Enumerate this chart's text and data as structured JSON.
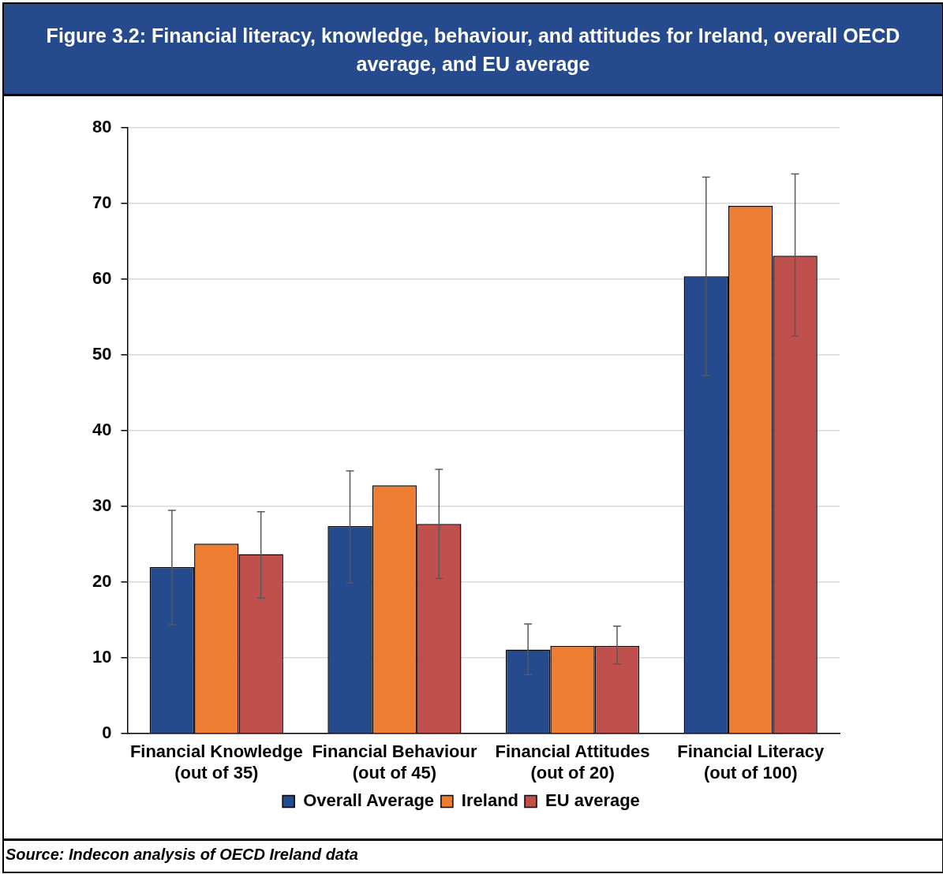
{
  "chart_data": {
    "type": "bar",
    "title": "Figure 3.2: Financial literacy, knowledge, behaviour, and attitudes for Ireland, overall OECD average, and EU average",
    "categories": [
      "Financial Knowledge (out of 35)",
      "Financial Behaviour (out of 45)",
      "Financial Attitudes (out of 20)",
      "Financial Literacy (out of 100)"
    ],
    "series": [
      {
        "name": "Overall Average",
        "color": "#264a8e",
        "values": [
          22.0,
          27.4,
          11.1,
          60.4
        ],
        "errors": [
          [
            14.4,
            29.5
          ],
          [
            19.9,
            34.7
          ],
          [
            7.8,
            14.5
          ],
          [
            47.3,
            73.5
          ]
        ]
      },
      {
        "name": "Ireland",
        "color": "#ed7d31",
        "values": [
          25.1,
          32.8,
          11.6,
          69.7
        ]
      },
      {
        "name": "EU average",
        "color": "#c0504d",
        "values": [
          23.7,
          27.7,
          11.6,
          63.1
        ],
        "errors": [
          [
            17.9,
            29.3
          ],
          [
            20.5,
            34.9
          ],
          [
            9.2,
            14.2
          ],
          [
            52.5,
            73.9
          ]
        ]
      }
    ],
    "ylim": [
      0,
      80
    ],
    "yticks": [
      0,
      10,
      20,
      30,
      40,
      50,
      60,
      70,
      80
    ],
    "grid": "y",
    "legend": "bottom",
    "annotations": [
      "Source: Indecon analysis of OECD Ireland data"
    ]
  }
}
